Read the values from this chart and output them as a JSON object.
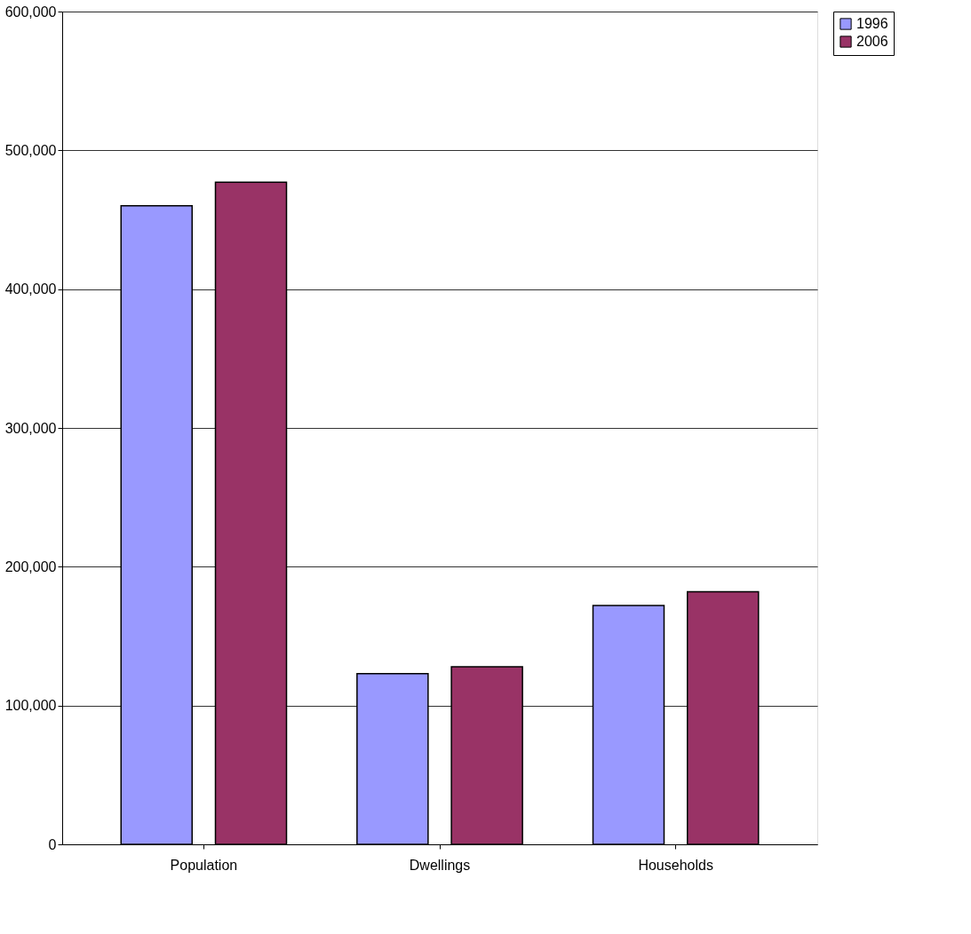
{
  "chart_data": {
    "type": "bar",
    "categories": [
      "Population",
      "Dwellings",
      "Households"
    ],
    "series": [
      {
        "name": "1996",
        "color": "#9999ff",
        "values": [
          460000,
          123000,
          172000
        ]
      },
      {
        "name": "2006",
        "color": "#993366",
        "values": [
          477000,
          128000,
          182000
        ]
      }
    ],
    "ylim": [
      0,
      600000
    ],
    "yticks": [
      {
        "value": 0,
        "label": "0"
      },
      {
        "value": 100000,
        "label": "100,000"
      },
      {
        "value": 200000,
        "label": "200,000"
      },
      {
        "value": 300000,
        "label": "300,000"
      },
      {
        "value": 400000,
        "label": "400,000"
      },
      {
        "value": 500000,
        "label": "500,000"
      },
      {
        "value": 600000,
        "label": "600,000"
      }
    ],
    "grid": "y",
    "legend": "right"
  }
}
